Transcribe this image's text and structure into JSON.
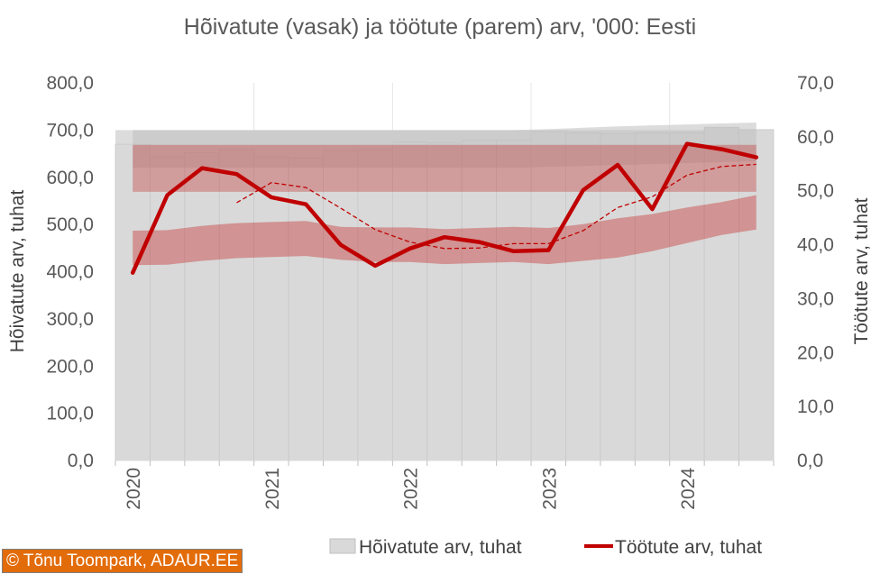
{
  "chart_data": {
    "type": "bar+line",
    "title": "Hõivatute (vasak) ja töötute (parem) arv, '000: Eesti",
    "ylabel_left": "Hõivatute arv, tuhat",
    "ylabel_right": "Töötute arv, tuhat",
    "ylim_left": [
      0,
      800
    ],
    "ylim_right": [
      0,
      70
    ],
    "yticks_left": [
      "0,0",
      "100,0",
      "200,0",
      "300,0",
      "400,0",
      "500,0",
      "600,0",
      "700,0",
      "800,0"
    ],
    "yticks_right": [
      "0,0",
      "10,0",
      "20,0",
      "30,0",
      "40,0",
      "50,0",
      "60,0",
      "70,0"
    ],
    "x_labels": [
      "2020",
      "2021",
      "2022",
      "2023",
      "2024"
    ],
    "x_label_quarter_index": [
      0,
      4,
      8,
      12,
      16
    ],
    "quarters": [
      "2020Q1",
      "2020Q2",
      "2020Q3",
      "2020Q4",
      "2021Q1",
      "2021Q2",
      "2021Q3",
      "2021Q4",
      "2022Q1",
      "2022Q2",
      "2022Q3",
      "2022Q4",
      "2023Q1",
      "2023Q2",
      "2023Q3",
      "2023Q4",
      "2024Q1",
      "2024Q2",
      "2024Q3"
    ],
    "series": [
      {
        "name": "Hõivatute arv, tuhat",
        "kind": "bar",
        "axis": "left",
        "color": "#d9d9d9",
        "values": [
          670,
          643,
          652,
          659,
          643,
          641,
          657,
          659,
          675,
          673,
          679,
          679,
          697,
          694,
          692,
          694,
          694,
          706,
          701
        ]
      },
      {
        "name": "Töötute arv, tuhat",
        "kind": "line",
        "axis": "right",
        "color": "#c00000",
        "values": [
          34.8,
          49.2,
          54.2,
          53.1,
          48.8,
          47.5,
          40.0,
          36.1,
          39.3,
          41.4,
          40.5,
          38.8,
          39.0,
          50.1,
          54.8,
          46.6,
          58.7,
          57.7,
          56.2
        ]
      },
      {
        "kind": "trend-dashed",
        "axis": "right",
        "color": "#c00000",
        "values": [
          null,
          null,
          null,
          47.8,
          51.5,
          50.6,
          46.8,
          42.8,
          40.5,
          39.3,
          39.4,
          40.2,
          40.2,
          42.6,
          46.9,
          48.9,
          52.9,
          54.5,
          54.9
        ]
      }
    ],
    "bands": [
      {
        "kind": "top-band",
        "axis": "left",
        "color": "#bfbfbf",
        "lower": [
          620,
          620,
          620,
          620,
          620,
          620,
          620,
          620,
          620,
          620,
          620,
          620,
          622,
          624,
          626,
          628,
          630,
          632,
          634
        ],
        "upper": [
          700,
          700,
          700,
          700,
          700,
          700,
          700,
          700,
          700,
          700,
          700,
          700,
          702,
          705,
          708,
          710,
          712,
          714,
          716
        ]
      },
      {
        "kind": "upper-band",
        "axis": "right",
        "color": "#c00000",
        "lower": [
          49.8,
          49.8,
          49.8,
          49.8,
          49.8,
          49.8,
          49.8,
          49.8,
          49.8,
          49.8,
          49.8,
          49.8,
          49.8,
          49.8,
          49.8,
          49.8,
          49.8,
          49.8,
          49.8
        ],
        "upper": [
          58.5,
          58.5,
          58.5,
          58.5,
          58.5,
          58.5,
          58.5,
          58.5,
          58.5,
          58.5,
          58.5,
          58.5,
          58.5,
          58.5,
          58.5,
          58.5,
          58.5,
          58.5,
          58.5
        ]
      },
      {
        "kind": "lower-band",
        "axis": "right",
        "color": "#c00000",
        "lower": [
          36.2,
          36.3,
          37.0,
          37.5,
          37.7,
          37.9,
          37.2,
          36.8,
          36.8,
          36.4,
          36.6,
          36.8,
          36.4,
          37.0,
          37.6,
          38.8,
          40.3,
          41.8,
          42.8
        ],
        "upper": [
          42.6,
          42.7,
          43.5,
          44.0,
          44.2,
          44.4,
          43.3,
          43.2,
          43.2,
          42.9,
          43.1,
          43.3,
          43.1,
          43.8,
          44.9,
          45.7,
          46.9,
          47.9,
          49.2
        ]
      }
    ],
    "grid": true,
    "legend_position": "bottom"
  },
  "legend": {
    "bar_label": "Hõivatute arv, tuhat",
    "line_label": "Töötute arv, tuhat"
  },
  "credit": "© Tõnu Toompark, ADAUR.EE"
}
